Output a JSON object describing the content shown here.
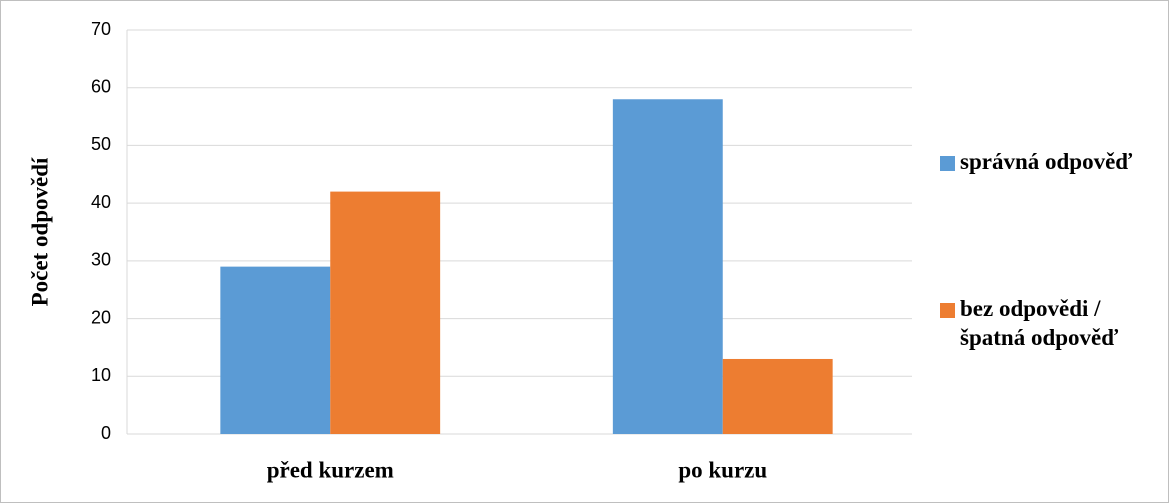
{
  "chart_data": {
    "type": "bar",
    "y_label": "Počet odpovědí",
    "categories": [
      "před kurzem",
      "po kurzu"
    ],
    "series": [
      {
        "name": "správná odpověď",
        "color": "#5b9bd5",
        "values": [
          29,
          58
        ]
      },
      {
        "name": "bez odpovědi / špatná odpověď",
        "color": "#ed7d31",
        "values": [
          42,
          13
        ]
      }
    ],
    "ylim": [
      0,
      70
    ],
    "yticks": [
      0,
      10,
      20,
      30,
      40,
      50,
      60,
      70
    ],
    "grid": true,
    "legend": "right"
  }
}
